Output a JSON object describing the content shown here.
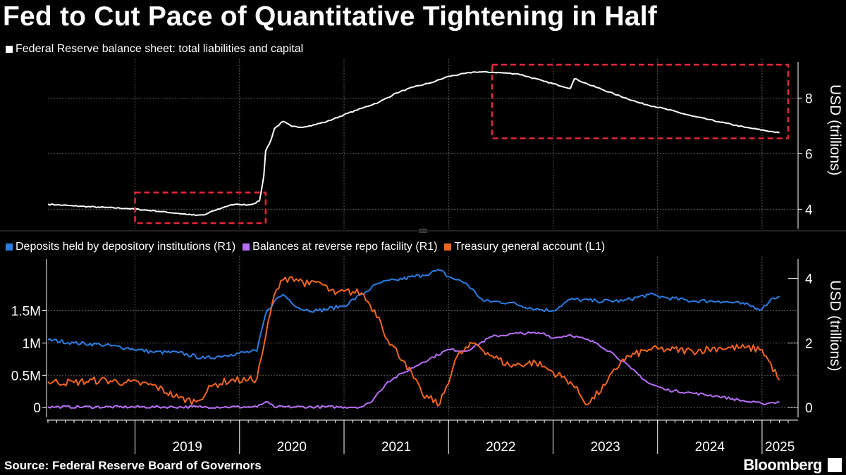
{
  "title": "Fed to Cut Pace of Quantitative Tightening in Half",
  "source": "Source: Federal Reserve Board of Governors",
  "brand": "Bloomberg",
  "colors": {
    "background": "#000000",
    "balance_sheet": "#ffffff",
    "deposits": "#2b7de3",
    "reverse_repo": "#b86ef7",
    "tga": "#f2651f",
    "highlight_box": "#e8263a",
    "grid": "#5a5a5a"
  },
  "chart_data": [
    {
      "type": "line",
      "legend": [
        "Federal Reserve balance sheet: total liabilities and capital"
      ],
      "ylabel": "USD (trillions)",
      "y_axis_side": "right",
      "yticks": [
        4,
        6,
        8
      ],
      "ylim": [
        3.3,
        9.3
      ],
      "xlim": [
        "2018-03",
        "2025-04"
      ],
      "grid": true,
      "series": [
        {
          "name": "Federal Reserve balance sheet: total liabilities and capital",
          "color": "#ffffff",
          "points": [
            [
              "2018-03",
              4.18
            ],
            [
              "2018-06",
              4.12
            ],
            [
              "2018-09",
              4.07
            ],
            [
              "2018-12",
              4.03
            ],
            [
              "2019-03",
              3.95
            ],
            [
              "2019-06",
              3.85
            ],
            [
              "2019-08",
              3.78
            ],
            [
              "2019-09",
              3.8
            ],
            [
              "2019-10",
              3.94
            ],
            [
              "2019-11",
              4.05
            ],
            [
              "2019-12",
              4.16
            ],
            [
              "2020-01",
              4.17
            ],
            [
              "2020-02",
              4.16
            ],
            [
              "2020-02-20",
              4.2
            ],
            [
              "2020-03-10",
              4.3
            ],
            [
              "2020-03-25",
              5.2
            ],
            [
              "2020-04",
              6.1
            ],
            [
              "2020-04-20",
              6.5
            ],
            [
              "2020-05",
              6.9
            ],
            [
              "2020-06",
              7.16
            ],
            [
              "2020-07",
              6.98
            ],
            [
              "2020-08",
              6.95
            ],
            [
              "2020-09",
              7.0
            ],
            [
              "2020-11",
              7.15
            ],
            [
              "2021-01",
              7.4
            ],
            [
              "2021-03",
              7.63
            ],
            [
              "2021-05",
              7.85
            ],
            [
              "2021-07",
              8.18
            ],
            [
              "2021-09",
              8.4
            ],
            [
              "2021-11",
              8.55
            ],
            [
              "2022-01",
              8.78
            ],
            [
              "2022-04",
              8.94
            ],
            [
              "2022-06",
              8.93
            ],
            [
              "2022-09",
              8.87
            ],
            [
              "2022-12",
              8.6
            ],
            [
              "2023-03",
              8.35
            ],
            [
              "2023-03-15",
              8.7
            ],
            [
              "2023-05",
              8.5
            ],
            [
              "2023-08",
              8.15
            ],
            [
              "2023-11",
              7.82
            ],
            [
              "2024-02",
              7.6
            ],
            [
              "2024-05",
              7.35
            ],
            [
              "2024-08",
              7.15
            ],
            [
              "2024-11",
              6.95
            ],
            [
              "2025-02",
              6.8
            ],
            [
              "2025-03",
              6.75
            ]
          ]
        }
      ],
      "annotations": [
        {
          "type": "dashed-box",
          "color": "#e8263a",
          "x": [
            "2019-01",
            "2020-04"
          ],
          "y": [
            3.5,
            4.6
          ]
        },
        {
          "type": "dashed-box",
          "color": "#e8263a",
          "x": [
            "2022-06",
            "2025-04"
          ],
          "y": [
            6.55,
            9.2
          ]
        }
      ]
    },
    {
      "type": "line",
      "legend": [
        "Deposits held by depository institutions (R1)",
        "Balances at reverse repo facility (R1)",
        "Treasury general account  (L1)"
      ],
      "ylabel_right": "USD (trillions)",
      "yticks_right": [
        0,
        2,
        4
      ],
      "ylim_right": [
        -0.3,
        4.6
      ],
      "yticks_left": [
        "0",
        "0.5M",
        "1M",
        "1.5M"
      ],
      "yticks_left_values": [
        0,
        500000,
        1000000,
        1500000
      ],
      "ylim_left": [
        -150000,
        2300000
      ],
      "x_ticks": [
        "2019",
        "2020",
        "2021",
        "2022",
        "2023",
        "2024",
        "2025"
      ],
      "xlim": [
        "2018-03",
        "2025-04"
      ],
      "grid": true,
      "series": [
        {
          "name": "Deposits held by depository institutions (R1)",
          "axis": "right",
          "color": "#2b7de3",
          "points": [
            [
              "2018-03",
              2.1
            ],
            [
              "2018-06",
              2.0
            ],
            [
              "2018-09",
              1.95
            ],
            [
              "2018-12",
              1.85
            ],
            [
              "2019-03",
              1.72
            ],
            [
              "2019-06",
              1.7
            ],
            [
              "2019-09",
              1.52
            ],
            [
              "2019-12",
              1.65
            ],
            [
              "2020-03",
              1.75
            ],
            [
              "2020-04",
              2.9
            ],
            [
              "2020-05",
              3.3
            ],
            [
              "2020-06",
              3.5
            ],
            [
              "2020-08",
              3.05
            ],
            [
              "2020-10",
              3.0
            ],
            [
              "2021-01",
              3.15
            ],
            [
              "2021-03",
              3.5
            ],
            [
              "2021-05",
              3.85
            ],
            [
              "2021-07",
              3.95
            ],
            [
              "2021-10",
              4.1
            ],
            [
              "2021-12",
              4.25
            ],
            [
              "2022-01",
              4.05
            ],
            [
              "2022-03",
              3.85
            ],
            [
              "2022-05",
              3.3
            ],
            [
              "2022-08",
              3.25
            ],
            [
              "2022-11",
              3.05
            ],
            [
              "2023-01",
              3.0
            ],
            [
              "2023-03",
              3.35
            ],
            [
              "2023-06",
              3.3
            ],
            [
              "2023-09",
              3.3
            ],
            [
              "2023-12",
              3.5
            ],
            [
              "2024-02",
              3.4
            ],
            [
              "2024-05",
              3.3
            ],
            [
              "2024-08",
              3.3
            ],
            [
              "2024-11",
              3.2
            ],
            [
              "2025-01",
              3.05
            ],
            [
              "2025-02",
              3.35
            ],
            [
              "2025-03",
              3.45
            ]
          ]
        },
        {
          "name": "Balances at reverse repo facility (R1)",
          "axis": "right",
          "color": "#b86ef7",
          "points": [
            [
              "2018-03",
              0.02
            ],
            [
              "2020-03",
              0.02
            ],
            [
              "2020-04",
              0.18
            ],
            [
              "2020-05",
              0.02
            ],
            [
              "2021-03",
              0.02
            ],
            [
              "2021-04",
              0.15
            ],
            [
              "2021-06",
              0.8
            ],
            [
              "2021-08",
              1.1
            ],
            [
              "2021-10",
              1.4
            ],
            [
              "2022-01",
              1.8
            ],
            [
              "2022-03",
              1.75
            ],
            [
              "2022-06",
              2.2
            ],
            [
              "2022-09",
              2.3
            ],
            [
              "2022-12",
              2.3
            ],
            [
              "2023-01",
              2.15
            ],
            [
              "2023-03",
              2.25
            ],
            [
              "2023-06",
              2.0
            ],
            [
              "2023-08",
              1.65
            ],
            [
              "2023-10",
              1.2
            ],
            [
              "2023-12",
              0.75
            ],
            [
              "2024-02",
              0.55
            ],
            [
              "2024-05",
              0.45
            ],
            [
              "2024-08",
              0.35
            ],
            [
              "2024-11",
              0.2
            ],
            [
              "2025-01",
              0.12
            ],
            [
              "2025-02",
              0.15
            ],
            [
              "2025-03",
              0.17
            ]
          ]
        },
        {
          "name": "Treasury general account  (L1)",
          "axis": "left",
          "color": "#f2651f",
          "points": [
            [
              "2018-03",
              0.8
            ],
            [
              "2018-06",
              0.78
            ],
            [
              "2018-09",
              0.85
            ],
            [
              "2018-12",
              0.78
            ],
            [
              "2019-03",
              0.7
            ],
            [
              "2019-06",
              0.3
            ],
            [
              "2019-08",
              0.18
            ],
            [
              "2019-10",
              0.7
            ],
            [
              "2019-12",
              0.85
            ],
            [
              "2020-02",
              0.85
            ],
            [
              "2020-03",
              0.9
            ],
            [
              "2020-04",
              2.2
            ],
            [
              "2020-05",
              3.5
            ],
            [
              "2020-06",
              3.95
            ],
            [
              "2020-07",
              4.05
            ],
            [
              "2020-09",
              3.8
            ],
            [
              "2020-10",
              3.9
            ],
            [
              "2020-12",
              3.5
            ],
            [
              "2021-01",
              3.6
            ],
            [
              "2021-03",
              3.55
            ],
            [
              "2021-05",
              2.8
            ],
            [
              "2021-06",
              2.1
            ],
            [
              "2021-08",
              1.4
            ],
            [
              "2021-10",
              0.4
            ],
            [
              "2021-12",
              0.1
            ],
            [
              "2022-02",
              1.6
            ],
            [
              "2022-04",
              2.0
            ],
            [
              "2022-06",
              1.6
            ],
            [
              "2022-08",
              1.3
            ],
            [
              "2022-11",
              1.4
            ],
            [
              "2023-01",
              1.1
            ],
            [
              "2023-03",
              0.8
            ],
            [
              "2023-05",
              0.1
            ],
            [
              "2023-07",
              0.7
            ],
            [
              "2023-09",
              1.5
            ],
            [
              "2023-12",
              1.8
            ],
            [
              "2024-02",
              1.8
            ],
            [
              "2024-05",
              1.75
            ],
            [
              "2024-08",
              1.85
            ],
            [
              "2024-11",
              1.85
            ],
            [
              "2025-01",
              1.8
            ],
            [
              "2025-03",
              0.85
            ]
          ]
        }
      ]
    }
  ]
}
